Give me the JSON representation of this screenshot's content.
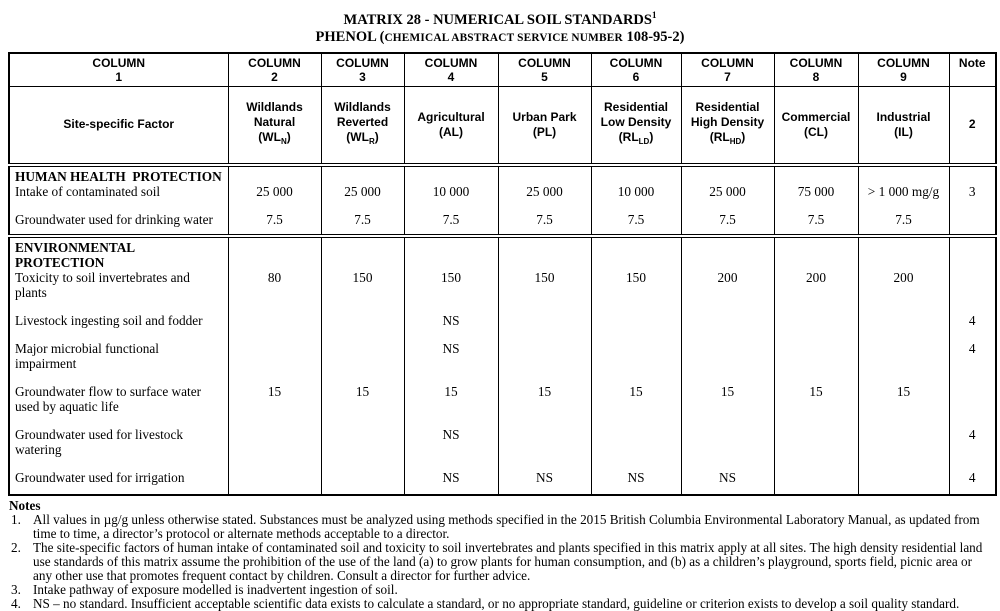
{
  "title": {
    "main": "MATRIX 28 - NUMERICAL SOIL STANDARDS",
    "superscript": "1",
    "sub_prefix": "PHENOL (",
    "sub_smallcaps": "CHEMICAL ABSTRACT SERVICE NUMBER",
    "sub_suffix": " 108-95-2)"
  },
  "table": {
    "column_headers": [
      {
        "line1": "COLUMN",
        "line2": "1"
      },
      {
        "line1": "COLUMN",
        "line2": "2"
      },
      {
        "line1": "COLUMN",
        "line2": "3"
      },
      {
        "line1": "COLUMN",
        "line2": "4"
      },
      {
        "line1": "COLUMN",
        "line2": "5"
      },
      {
        "line1": "COLUMN",
        "line2": "6"
      },
      {
        "line1": "COLUMN",
        "line2": "7"
      },
      {
        "line1": "COLUMN",
        "line2": "8"
      },
      {
        "line1": "COLUMN",
        "line2": "9"
      },
      {
        "line1": "Note",
        "line2": ""
      }
    ],
    "land_use_headers": [
      {
        "lines": [
          "Site-specific Factor"
        ]
      },
      {
        "lines": [
          "Wildlands",
          "Natural",
          "(WL~N~)"
        ]
      },
      {
        "lines": [
          "Wildlands",
          "Reverted",
          "(WL~R~)"
        ]
      },
      {
        "lines": [
          "Agricultural",
          "(AL)"
        ]
      },
      {
        "lines": [
          "Urban Park",
          "(PL)"
        ]
      },
      {
        "lines": [
          "Residential",
          "Low Density",
          "(RL~LD~)"
        ]
      },
      {
        "lines": [
          "Residential",
          "High Density",
          "(RL~HD~)"
        ]
      },
      {
        "lines": [
          "Commercial",
          "(CL)"
        ]
      },
      {
        "lines": [
          "Industrial",
          "(IL)"
        ]
      },
      {
        "lines": [
          "2"
        ]
      }
    ],
    "sections": [
      {
        "heading_lines": [
          "HUMAN HEALTH  PROTECTION"
        ],
        "factors": [
          {
            "label": "Intake of contaminated soil",
            "values": [
              "25 000",
              "25 000",
              "10 000",
              "25 000",
              "10 000",
              "25 000",
              "75 000",
              "> 1 000 mg/g"
            ],
            "note": "3"
          },
          {
            "label": "Groundwater used for drinking water",
            "values": [
              "7.5",
              "7.5",
              "7.5",
              "7.5",
              "7.5",
              "7.5",
              "7.5",
              "7.5"
            ],
            "note": ""
          }
        ]
      },
      {
        "heading_lines": [
          "ENVIRONMENTAL",
          "PROTECTION"
        ],
        "factors": [
          {
            "label": "Toxicity to soil invertebrates and plants",
            "values": [
              "80",
              "150",
              "150",
              "150",
              "150",
              "200",
              "200",
              "200"
            ],
            "note": ""
          },
          {
            "label": "Livestock ingesting soil and fodder",
            "values": [
              "",
              "",
              "NS",
              "",
              "",
              "",
              "",
              ""
            ],
            "note": "4"
          },
          {
            "label": "Major microbial functional impairment",
            "values": [
              "",
              "",
              "NS",
              "",
              "",
              "",
              "",
              ""
            ],
            "note": "4"
          },
          {
            "label": "Groundwater flow to surface water used by aquatic life",
            "values": [
              "15",
              "15",
              "15",
              "15",
              "15",
              "15",
              "15",
              "15"
            ],
            "note": ""
          },
          {
            "label": "Groundwater used for livestock watering",
            "values": [
              "",
              "",
              "NS",
              "",
              "",
              "",
              "",
              ""
            ],
            "note": "4"
          },
          {
            "label": "Groundwater used for irrigation",
            "values": [
              "",
              "",
              "NS",
              "NS",
              "NS",
              "NS",
              "",
              ""
            ],
            "note": "4"
          }
        ]
      }
    ]
  },
  "notes": {
    "heading": "Notes",
    "items": [
      {
        "num": "1.",
        "text": "All values in µg/g unless otherwise stated.  Substances must be analyzed using methods specified in the 2015 British Columbia Environmental Laboratory Manual, as updated from time to time, a director’s protocol or alternate methods acceptable to a director."
      },
      {
        "num": "2.",
        "text": "The site-specific factors of human intake of contaminated soil and toxicity to soil invertebrates and plants specified in this matrix apply at all sites. The high density residential land use standards of this matrix assume the prohibition of the use of the land (a) to grow plants for human consumption, and (b) as a children’s playground, sports field, picnic area or any other use that promotes frequent contact by children. Consult a director for further advice."
      },
      {
        "num": "3.",
        "text": "Intake pathway of exposure modelled is inadvertent ingestion of soil."
      },
      {
        "num": "4.",
        "text": "NS – no standard. Insufficient acceptable scientific data exists to calculate a standard, or no appropriate standard, guideline or criterion exists to develop a soil quality standard."
      }
    ]
  }
}
